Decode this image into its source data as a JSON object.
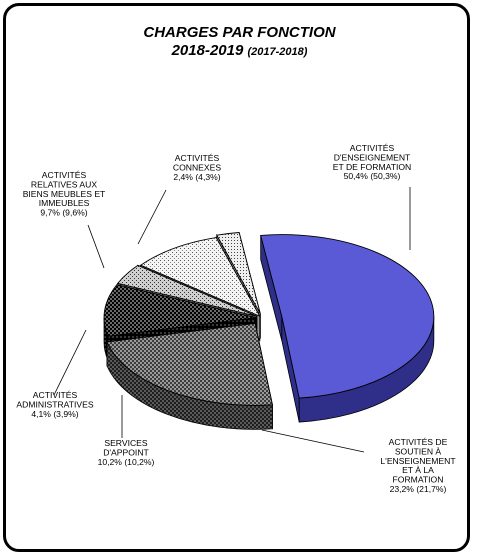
{
  "chart_data": {
    "type": "pie",
    "title": "CHARGES PAR FONCTION",
    "subtitle_main": "2018-2019",
    "subtitle_sub": "(2017-2018)",
    "slices": [
      {
        "label_lines": [
          "ACTIVITÉS",
          "D'ENSEIGNEMENT",
          "ET DE FORMATION"
        ],
        "value_text": "50,4% (50,3%)",
        "value": 50.4,
        "previous": 50.3,
        "pattern": "solid-blue"
      },
      {
        "label_lines": [
          "ACTIVITÉS DE",
          "SOUTIEN À",
          "L'ENSEIGNEMENT",
          "ET À LA",
          "FORMATION"
        ],
        "value_text": "23,2% (21,7%)",
        "value": 23.2,
        "previous": 21.7,
        "pattern": "checker-gray"
      },
      {
        "label_lines": [
          "SERVICES",
          "D'APPOINT"
        ],
        "value_text": "10,2% (10,2%)",
        "value": 10.2,
        "previous": 10.2,
        "pattern": "dark-checker"
      },
      {
        "label_lines": [
          "ACTIVITÉS",
          "ADMINISTRATIVES"
        ],
        "value_text": "4,1% (3,9%)",
        "value": 4.1,
        "previous": 3.9,
        "pattern": "light-dots"
      },
      {
        "label_lines": [
          "ACTIVITÉS",
          "RELATIVES AUX",
          "BIENS MEUBLES ET",
          "IMMEUBLES"
        ],
        "value_text": "9,7% (9,6%)",
        "value": 9.7,
        "previous": 9.6,
        "pattern": "white-dots"
      },
      {
        "label_lines": [
          "ACTIVITÉS",
          "CONNEXES"
        ],
        "value_text": "2,4% (4,3%)",
        "value": 2.4,
        "previous": 4.3,
        "pattern": "fine-dots"
      }
    ],
    "colors": {
      "primary_slice": "#5a5ad6",
      "outline": "#000000"
    }
  }
}
